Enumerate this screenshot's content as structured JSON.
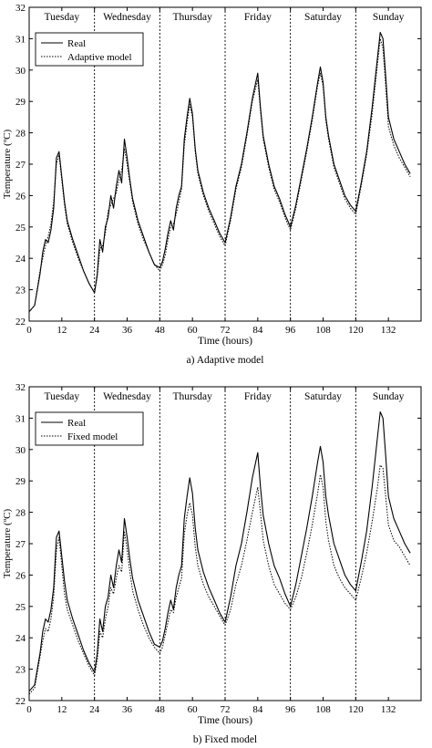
{
  "chart_data": [
    {
      "type": "line",
      "caption": "a) Adaptive model",
      "xlabel": "Time (hours)",
      "ylabel": "Temperature (ºC)",
      "xlim": [
        0,
        144
      ],
      "ylim": [
        22,
        32
      ],
      "xticks": [
        0,
        12,
        24,
        36,
        48,
        60,
        72,
        84,
        96,
        108,
        120,
        132
      ],
      "yticks": [
        22,
        23,
        24,
        25,
        26,
        27,
        28,
        29,
        30,
        31,
        32
      ],
      "grid": false,
      "legend_position": "top-left",
      "day_separators": [
        24,
        48,
        72,
        96,
        120
      ],
      "days": [
        {
          "label": "Tuesday",
          "x": 12
        },
        {
          "label": "Wednesday",
          "x": 36
        },
        {
          "label": "Thursday",
          "x": 60
        },
        {
          "label": "Friday",
          "x": 84
        },
        {
          "label": "Saturday",
          "x": 108
        },
        {
          "label": "Sunday",
          "x": 132
        }
      ],
      "series": [
        {
          "name": "Real",
          "style": "solid",
          "x": [
            0,
            2,
            4,
            5,
            6,
            7,
            8,
            9,
            10,
            11,
            12,
            13,
            14,
            16,
            18,
            20,
            22,
            24,
            25,
            26,
            27,
            28,
            29,
            30,
            31,
            32,
            33,
            34,
            35,
            36,
            37,
            38,
            40,
            42,
            44,
            46,
            48,
            49,
            50,
            51,
            52,
            53,
            54,
            55,
            56,
            57,
            58,
            59,
            60,
            61,
            62,
            64,
            66,
            68,
            70,
            72,
            74,
            76,
            78,
            80,
            82,
            84,
            85,
            86,
            88,
            90,
            92,
            94,
            96,
            98,
            100,
            102,
            104,
            106,
            107,
            108,
            109,
            110,
            112,
            114,
            116,
            118,
            120,
            122,
            124,
            126,
            128,
            129,
            130,
            131,
            132,
            134,
            136,
            138,
            140
          ],
          "y": [
            22.3,
            22.5,
            23.5,
            24.2,
            24.6,
            24.5,
            24.9,
            25.6,
            27.2,
            27.4,
            26.6,
            25.8,
            25.2,
            24.6,
            24.1,
            23.6,
            23.2,
            22.9,
            23.5,
            24.6,
            24.2,
            25.0,
            25.3,
            26.0,
            25.6,
            26.3,
            26.8,
            26.4,
            27.8,
            27.2,
            26.5,
            25.9,
            25.2,
            24.7,
            24.2,
            23.8,
            23.7,
            23.9,
            24.3,
            24.8,
            25.2,
            24.9,
            25.6,
            26.0,
            26.3,
            27.8,
            28.5,
            29.1,
            28.6,
            27.5,
            26.8,
            26.1,
            25.6,
            25.2,
            24.8,
            24.5,
            25.3,
            26.3,
            27.0,
            28.0,
            29.1,
            29.9,
            28.8,
            27.9,
            27.0,
            26.3,
            25.9,
            25.4,
            25.0,
            25.7,
            26.6,
            27.5,
            28.5,
            29.6,
            30.1,
            29.6,
            28.5,
            27.9,
            27.0,
            26.5,
            26.0,
            25.7,
            25.5,
            26.4,
            27.4,
            28.8,
            30.4,
            31.2,
            31.0,
            29.8,
            28.5,
            27.8,
            27.4,
            27.0,
            26.7
          ]
        },
        {
          "name": "Adaptive model",
          "style": "dotted",
          "x": [
            0,
            2,
            4,
            5,
            6,
            7,
            8,
            9,
            10,
            11,
            12,
            13,
            14,
            16,
            18,
            20,
            22,
            24,
            25,
            26,
            27,
            28,
            29,
            30,
            31,
            32,
            33,
            34,
            35,
            36,
            37,
            38,
            40,
            42,
            44,
            46,
            48,
            49,
            50,
            51,
            52,
            53,
            54,
            55,
            56,
            57,
            58,
            59,
            60,
            61,
            62,
            64,
            66,
            68,
            70,
            72,
            74,
            76,
            78,
            80,
            82,
            84,
            85,
            86,
            88,
            90,
            92,
            94,
            96,
            98,
            100,
            102,
            104,
            106,
            107,
            108,
            109,
            110,
            112,
            114,
            116,
            118,
            120,
            122,
            124,
            126,
            128,
            129,
            130,
            131,
            132,
            134,
            136,
            138,
            140
          ],
          "y": [
            22.3,
            22.5,
            23.6,
            24.0,
            24.4,
            24.7,
            25.1,
            25.8,
            27.0,
            27.3,
            26.5,
            25.7,
            25.1,
            24.5,
            24.0,
            23.6,
            23.2,
            22.9,
            23.4,
            24.3,
            24.4,
            24.8,
            25.5,
            25.7,
            25.9,
            26.1,
            26.5,
            26.8,
            27.5,
            27.0,
            26.4,
            25.8,
            25.1,
            24.6,
            24.2,
            23.8,
            23.6,
            23.8,
            24.1,
            24.6,
            25.0,
            25.1,
            25.4,
            25.8,
            26.2,
            27.6,
            28.3,
            28.9,
            28.5,
            27.4,
            26.7,
            26.0,
            25.5,
            25.1,
            24.7,
            24.4,
            25.2,
            26.2,
            26.9,
            27.9,
            29.0,
            29.7,
            28.7,
            27.8,
            26.9,
            26.2,
            25.8,
            25.3,
            24.9,
            25.6,
            26.5,
            27.4,
            28.4,
            29.5,
            29.9,
            29.5,
            28.4,
            27.8,
            26.9,
            26.4,
            25.9,
            25.6,
            25.4,
            26.3,
            27.3,
            28.6,
            30.2,
            31.0,
            30.7,
            29.5,
            28.2,
            27.6,
            27.2,
            26.9,
            26.6
          ]
        }
      ]
    },
    {
      "type": "line",
      "caption": "b) Fixed model",
      "xlabel": "Time (hours)",
      "ylabel": "Temperature (ºC)",
      "xlim": [
        0,
        144
      ],
      "ylim": [
        22,
        32
      ],
      "xticks": [
        0,
        12,
        24,
        36,
        48,
        60,
        72,
        84,
        96,
        108,
        120,
        132
      ],
      "yticks": [
        22,
        23,
        24,
        25,
        26,
        27,
        28,
        29,
        30,
        31,
        32
      ],
      "grid": false,
      "legend_position": "top-left",
      "day_separators": [
        24,
        48,
        72,
        96,
        120
      ],
      "days": [
        {
          "label": "Tuesday",
          "x": 12
        },
        {
          "label": "Wednesday",
          "x": 36
        },
        {
          "label": "Thursday",
          "x": 60
        },
        {
          "label": "Friday",
          "x": 84
        },
        {
          "label": "Saturday",
          "x": 108
        },
        {
          "label": "Sunday",
          "x": 132
        }
      ],
      "series": [
        {
          "name": "Real",
          "style": "solid",
          "x": [
            0,
            2,
            4,
            5,
            6,
            7,
            8,
            9,
            10,
            11,
            12,
            13,
            14,
            16,
            18,
            20,
            22,
            24,
            25,
            26,
            27,
            28,
            29,
            30,
            31,
            32,
            33,
            34,
            35,
            36,
            37,
            38,
            40,
            42,
            44,
            46,
            48,
            49,
            50,
            51,
            52,
            53,
            54,
            55,
            56,
            57,
            58,
            59,
            60,
            61,
            62,
            64,
            66,
            68,
            70,
            72,
            74,
            76,
            78,
            80,
            82,
            84,
            85,
            86,
            88,
            90,
            92,
            94,
            96,
            98,
            100,
            102,
            104,
            106,
            107,
            108,
            109,
            110,
            112,
            114,
            116,
            118,
            120,
            122,
            124,
            126,
            128,
            129,
            130,
            131,
            132,
            134,
            136,
            138,
            140
          ],
          "y": [
            22.3,
            22.5,
            23.5,
            24.2,
            24.6,
            24.5,
            24.9,
            25.6,
            27.2,
            27.4,
            26.6,
            25.8,
            25.2,
            24.6,
            24.1,
            23.6,
            23.2,
            22.9,
            23.5,
            24.6,
            24.2,
            25.0,
            25.3,
            26.0,
            25.6,
            26.3,
            26.8,
            26.4,
            27.8,
            27.2,
            26.5,
            25.9,
            25.2,
            24.7,
            24.2,
            23.8,
            23.7,
            23.9,
            24.3,
            24.8,
            25.2,
            24.9,
            25.6,
            26.0,
            26.3,
            27.8,
            28.5,
            29.1,
            28.6,
            27.5,
            26.8,
            26.1,
            25.6,
            25.2,
            24.8,
            24.5,
            25.3,
            26.3,
            27.0,
            28.0,
            29.1,
            29.9,
            28.8,
            27.9,
            27.0,
            26.3,
            25.9,
            25.4,
            25.0,
            25.7,
            26.6,
            27.5,
            28.5,
            29.6,
            30.1,
            29.6,
            28.5,
            27.9,
            27.0,
            26.5,
            26.0,
            25.7,
            25.5,
            26.4,
            27.4,
            28.8,
            30.4,
            31.2,
            31.0,
            29.8,
            28.5,
            27.8,
            27.4,
            27.0,
            26.7
          ]
        },
        {
          "name": "Fixed model",
          "style": "dotted",
          "x": [
            0,
            2,
            4,
            5,
            6,
            7,
            8,
            9,
            10,
            11,
            12,
            13,
            14,
            16,
            18,
            20,
            22,
            24,
            25,
            26,
            27,
            28,
            29,
            30,
            31,
            32,
            33,
            34,
            35,
            36,
            37,
            38,
            40,
            42,
            44,
            46,
            48,
            49,
            50,
            51,
            52,
            53,
            54,
            55,
            56,
            57,
            58,
            59,
            60,
            61,
            62,
            64,
            66,
            68,
            70,
            72,
            74,
            76,
            78,
            80,
            82,
            84,
            85,
            86,
            88,
            90,
            92,
            94,
            96,
            98,
            100,
            102,
            104,
            106,
            107,
            108,
            109,
            110,
            112,
            114,
            116,
            118,
            120,
            122,
            124,
            126,
            128,
            129,
            130,
            131,
            132,
            134,
            136,
            138,
            140
          ],
          "y": [
            22.2,
            22.4,
            23.4,
            23.9,
            24.3,
            24.2,
            24.6,
            25.3,
            26.8,
            27.2,
            26.3,
            25.4,
            24.9,
            24.4,
            23.9,
            23.5,
            23.1,
            22.8,
            23.3,
            24.2,
            24.0,
            24.6,
            25.0,
            25.6,
            25.4,
            25.9,
            26.3,
            26.1,
            27.4,
            26.8,
            26.1,
            25.5,
            24.9,
            24.4,
            24.0,
            23.7,
            23.5,
            23.7,
            24.1,
            24.5,
            24.9,
            24.8,
            25.3,
            25.6,
            25.9,
            27.3,
            27.9,
            28.3,
            27.9,
            26.9,
            26.3,
            25.7,
            25.3,
            25.0,
            24.7,
            24.4,
            24.9,
            25.7,
            26.3,
            27.1,
            28.0,
            28.8,
            28.0,
            27.1,
            26.3,
            25.7,
            25.4,
            25.1,
            24.9,
            25.3,
            25.9,
            26.7,
            27.6,
            28.6,
            29.2,
            28.8,
            27.7,
            27.1,
            26.3,
            25.9,
            25.6,
            25.4,
            25.2,
            25.9,
            26.7,
            27.7,
            28.8,
            29.5,
            29.4,
            28.5,
            27.6,
            27.1,
            26.9,
            26.6,
            26.3
          ]
        }
      ]
    }
  ]
}
